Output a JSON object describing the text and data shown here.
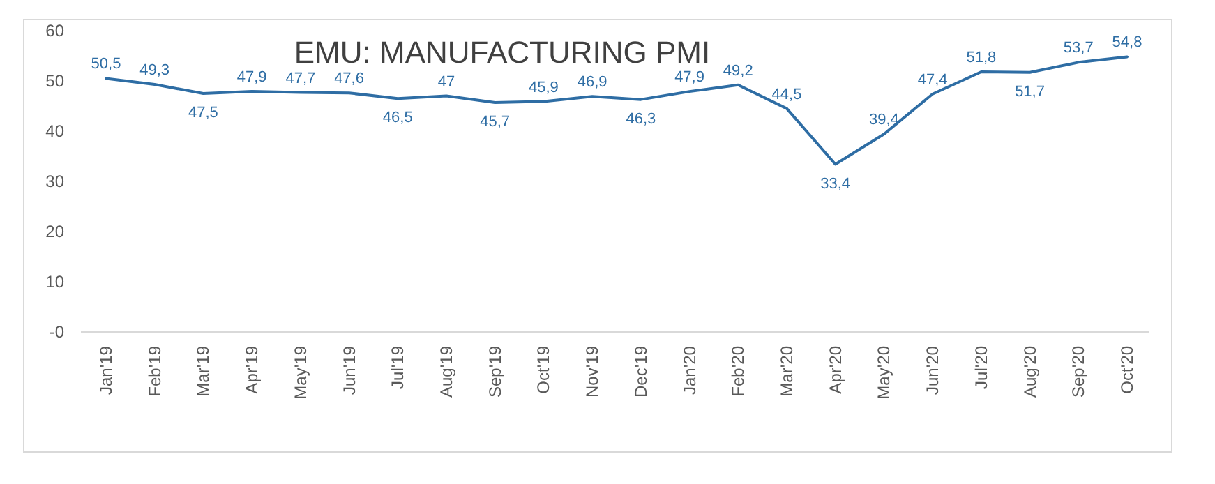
{
  "chart_data": {
    "type": "line",
    "title": "EMU: MANUFACTURING PMI",
    "categories": [
      "Jan'19",
      "Feb'19",
      "Mar'19",
      "Apr'19",
      "May'19",
      "Jun'19",
      "Jul'19",
      "Aug'19",
      "Sep'19",
      "Oct'19",
      "Nov'19",
      "Dec'19",
      "Jan'20",
      "Feb'20",
      "Mar'20",
      "Apr'20",
      "May'20",
      "Jun'20",
      "Jul'20",
      "Aug'20",
      "Sep'20",
      "Oct'20"
    ],
    "series": [
      {
        "color": "#2e6da4",
        "values": [
          50.5,
          49.3,
          47.5,
          47.9,
          47.7,
          47.6,
          46.5,
          47,
          45.7,
          45.9,
          46.9,
          46.3,
          47.9,
          49.2,
          44.5,
          33.4,
          39.4,
          47.4,
          51.8,
          51.7,
          53.7,
          54.8
        ],
        "value_labels": [
          "50,5",
          "49,3",
          "47,5",
          "47,9",
          "47,7",
          "47,6",
          "46,5",
          "47",
          "45,7",
          "45,9",
          "46,9",
          "46,3",
          "47,9",
          "49,2",
          "44,5",
          "33,4",
          "39,4",
          "47,4",
          "51,8",
          "51,7",
          "53,7",
          "54,8"
        ]
      }
    ],
    "ylim": [
      0,
      60
    ],
    "yticks": [
      {
        "value": 0,
        "label": "-0"
      },
      10,
      20,
      30,
      40,
      50,
      60
    ],
    "marker": "none",
    "line_style": "solid"
  }
}
